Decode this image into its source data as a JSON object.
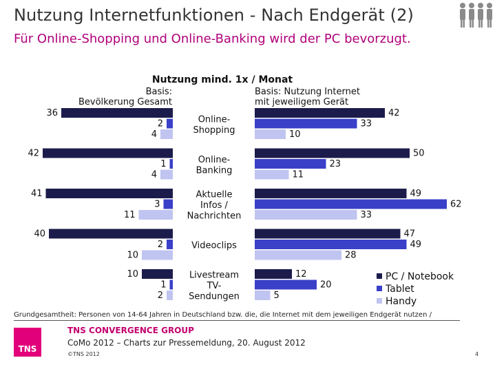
{
  "header": {
    "title": "Nutzung Internetfunktionen - Nach Endgerät (2)",
    "subtitle": "Für Online-Shopping und Online-Banking wird der PC bevorzugt."
  },
  "colors": {
    "pc": "#1c1c4c",
    "tablet": "#3a40c8",
    "handy": "#c0c4f0",
    "subtitle": "#b0007a",
    "brand": "#e2007a"
  },
  "chart_data": {
    "type": "bar",
    "title": "Nutzung mind. 1x / Monat",
    "left_basis": [
      "Basis:",
      "Bevölkerung Gesamt"
    ],
    "right_basis": [
      "Basis: Nutzung Internet",
      "mit jeweiligem Gerät"
    ],
    "categories": [
      [
        "Online-",
        "Shopping"
      ],
      [
        "Online-",
        "Banking"
      ],
      [
        "Aktuelle",
        "Infos /",
        "Nachrichten"
      ],
      [
        "Videoclips"
      ],
      [
        "Livestream",
        "TV-",
        "Sendungen"
      ]
    ],
    "left_panel": {
      "name": "Bevölkerung Gesamt",
      "series": [
        {
          "name": "PC / Notebook",
          "values": [
            36,
            42,
            41,
            40,
            10
          ]
        },
        {
          "name": "Tablet",
          "values": [
            2,
            1,
            3,
            2,
            1
          ]
        },
        {
          "name": "Handy",
          "values": [
            4,
            4,
            11,
            10,
            2
          ]
        }
      ]
    },
    "right_panel": {
      "name": "Nutzung Internet mit jeweiligem Gerät",
      "series": [
        {
          "name": "PC / Notebook",
          "values": [
            42,
            50,
            49,
            47,
            12
          ]
        },
        {
          "name": "Tablet",
          "values": [
            33,
            23,
            62,
            49,
            20
          ]
        },
        {
          "name": "Handy",
          "values": [
            10,
            11,
            33,
            28,
            5
          ]
        }
      ]
    },
    "legend": [
      "PC / Notebook",
      "Tablet",
      "Handy"
    ],
    "legend_position": "bottom-right"
  },
  "footer": {
    "footnote": "Grundgesamtheit: Personen von 14-64 Jahren in Deutschland bzw. die, die Internet mit dem jeweiligen Endgerät nutzen /",
    "logo_text": "TNS",
    "company": "TNS CONVERGENCE GROUP",
    "meta": "CoMo 2012 – Charts zur Pressemeldung, 20. August 2012",
    "copyright": "©TNS 2012",
    "page_number": "4"
  }
}
